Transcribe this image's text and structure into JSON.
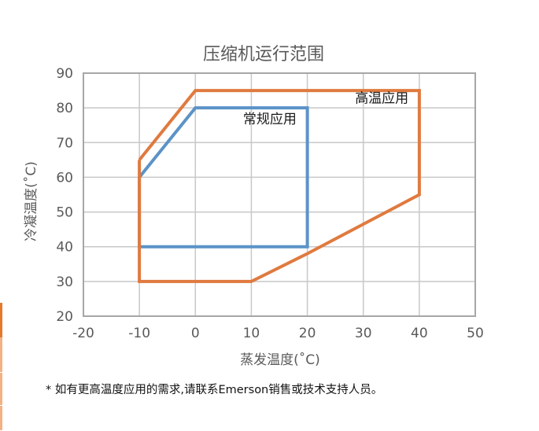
{
  "colors": {
    "normal_series": "#5b93c7",
    "high_series": "#e07a3f",
    "grid": "#c8c8c8",
    "frame": "#a6a6a6",
    "text": "#595959",
    "annotation": "#1a1a1a"
  },
  "chart_data": {
    "type": "line",
    "title": "压缩机运行范围",
    "xlabel": "蒸发温度(˚C)",
    "ylabel": "冷凝温度(˚C)",
    "xlim": [
      -20,
      50
    ],
    "ylim": [
      20,
      90
    ],
    "x_ticks": [
      "-20",
      "-10",
      "0",
      "10",
      "20",
      "30",
      "40",
      "50"
    ],
    "y_ticks": [
      "20",
      "30",
      "40",
      "50",
      "60",
      "70",
      "80",
      "90"
    ],
    "grid": true,
    "series": [
      {
        "name": "常规应用",
        "color": "#5b93c7",
        "points": [
          [
            -10,
            60
          ],
          [
            0,
            80
          ],
          [
            20,
            80
          ],
          [
            20,
            40
          ],
          [
            -10,
            40
          ],
          [
            -10,
            60
          ]
        ]
      },
      {
        "name": "高温应用",
        "color": "#e07a3f",
        "points": [
          [
            -10,
            65
          ],
          [
            0,
            85
          ],
          [
            40,
            85
          ],
          [
            40,
            55
          ],
          [
            20,
            38
          ],
          [
            10,
            30
          ],
          [
            -10,
            30
          ],
          [
            -10,
            65
          ]
        ]
      }
    ],
    "annotations": [
      {
        "text": "常规应用",
        "x": 13.3,
        "y": 75.5
      },
      {
        "text": "高温应用",
        "x": 33.3,
        "y": 81.5
      }
    ]
  },
  "footnote": "* 如有更高温度应用的需求,请联系Emerson销售或技术支持人员。"
}
